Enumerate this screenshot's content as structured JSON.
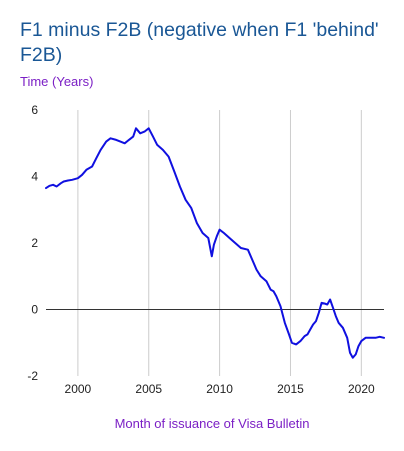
{
  "chart_data": {
    "type": "line",
    "title": "F1 minus F2B (negative when F1 'behind' F2B)",
    "ylabel": "Time (Years)",
    "xlabel": "Month of issuance of Visa Bulletin",
    "xlim": [
      1997.75,
      2021.6
    ],
    "ylim": [
      -2,
      6
    ],
    "xticks": [
      2000,
      2005,
      2010,
      2015,
      2020
    ],
    "yticks": [
      -2,
      0,
      2,
      4,
      6
    ],
    "grid": "vertical",
    "line_color": "#1010e0",
    "series": [
      {
        "x": [
          1997.75,
          1998.0,
          1998.25,
          1998.5,
          1998.8,
          1999.0,
          1999.3,
          1999.6,
          2000.0,
          2000.3,
          2000.6,
          2001.0,
          2001.3,
          2001.6,
          2002.0,
          2002.3,
          2002.7,
          2003.0,
          2003.3,
          2003.6,
          2003.9,
          2004.1,
          2004.4,
          2004.7,
          2005.0,
          2005.3,
          2005.6,
          2006.0,
          2006.4,
          2006.8,
          2007.2,
          2007.6,
          2008.0,
          2008.4,
          2008.8,
          2009.2,
          2009.45,
          2009.6,
          2009.8,
          2010.0,
          2010.3,
          2010.7,
          2011.1,
          2011.5,
          2012.0,
          2012.3,
          2012.6,
          2012.9,
          2013.3,
          2013.6,
          2013.8,
          2014.0,
          2014.3,
          2014.6,
          2014.9,
          2015.1,
          2015.4,
          2015.7,
          2016.0,
          2016.2,
          2016.4,
          2016.6,
          2016.8,
          2017.0,
          2017.2,
          2017.4,
          2017.6,
          2017.8,
          2018.0,
          2018.2,
          2018.4,
          2018.7,
          2019.0,
          2019.2,
          2019.4,
          2019.6,
          2019.8,
          2020.0,
          2020.3,
          2020.7,
          2021.0,
          2021.3,
          2021.6
        ],
        "y": [
          3.65,
          3.72,
          3.75,
          3.7,
          3.8,
          3.85,
          3.88,
          3.9,
          3.95,
          4.05,
          4.2,
          4.3,
          4.55,
          4.8,
          5.05,
          5.15,
          5.1,
          5.05,
          5.0,
          5.1,
          5.2,
          5.45,
          5.3,
          5.35,
          5.45,
          5.2,
          4.95,
          4.8,
          4.6,
          4.15,
          3.7,
          3.3,
          3.05,
          2.6,
          2.3,
          2.15,
          1.6,
          1.95,
          2.2,
          2.4,
          2.3,
          2.15,
          2.0,
          1.85,
          1.8,
          1.5,
          1.2,
          1.0,
          0.85,
          0.6,
          0.55,
          0.4,
          0.1,
          -0.4,
          -0.75,
          -1.0,
          -1.05,
          -0.95,
          -0.8,
          -0.75,
          -0.6,
          -0.45,
          -0.35,
          -0.1,
          0.2,
          0.18,
          0.15,
          0.3,
          0.05,
          -0.2,
          -0.4,
          -0.55,
          -0.85,
          -1.3,
          -1.45,
          -1.35,
          -1.1,
          -0.95,
          -0.85,
          -0.85,
          -0.85,
          -0.82,
          -0.85
        ]
      }
    ]
  }
}
